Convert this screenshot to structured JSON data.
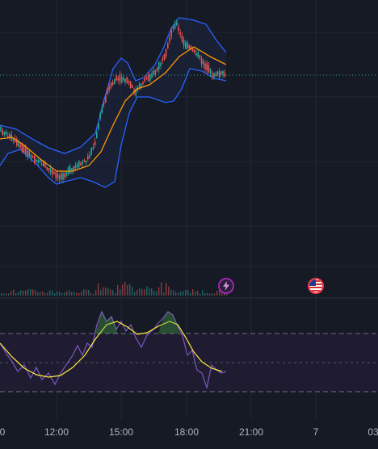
{
  "colors": {
    "background": "#161a25",
    "grid": "#232733",
    "price_line": "#26a69a",
    "candle_up": "#26a69a",
    "candle_down": "#ef5350",
    "bollinger_band": "#2962ff",
    "bollinger_fill": "#1d2740",
    "moving_average": "#ff9800",
    "rsi": "#7e57c2",
    "rsi_signal": "#ffeb3b",
    "rsi_band_fill": "#1f1c31",
    "rsi_levels": "#787b86",
    "event_lightning": "#9c27b0",
    "event_flag": "#f23645"
  },
  "icons": [
    "lightning-icon",
    "us-flag-icon"
  ],
  "time_axis": {
    "labels": [
      "0",
      "12:00",
      "15:00",
      "18:00",
      "21:00",
      "7",
      "03"
    ]
  }
}
